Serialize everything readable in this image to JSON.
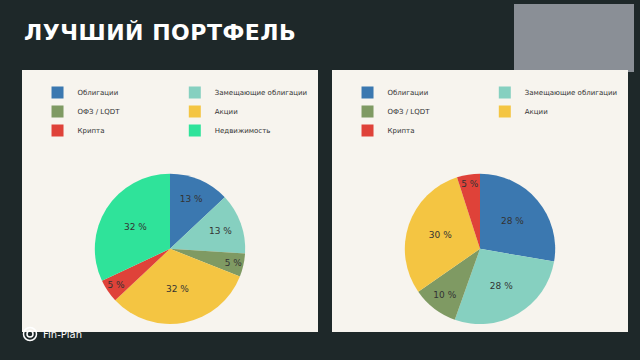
{
  "title": "ЛУЧШИЙ ПОРТФЕЛЬ",
  "brand": "Fin-Plan",
  "chart_data": [
    {
      "type": "pie",
      "categories": [
        "Облигации",
        "Замещающие облигации",
        "ОФЗ / LQDT",
        "Акции",
        "Крипта",
        "Недвижимость"
      ],
      "values": [
        13,
        13,
        5,
        32,
        5,
        32
      ],
      "value_labels": [
        "13 %",
        "13 %",
        "5 %",
        "32 %",
        "5 %",
        "32 %"
      ],
      "colors": [
        "#3b78b0",
        "#86d0c0",
        "#7f9a63",
        "#f4c542",
        "#df4239",
        "#2fe39a"
      ],
      "data_labels": true,
      "legend": "top"
    },
    {
      "type": "pie",
      "categories": [
        "Облигации",
        "Замещающие облигации",
        "ОФЗ / LQDT",
        "Акции",
        "Крипта"
      ],
      "values": [
        28,
        28,
        10,
        30,
        5
      ],
      "value_labels": [
        "28 %",
        "28 %",
        "10 %",
        "30 %",
        "5 %"
      ],
      "colors": [
        "#3b78b0",
        "#86d0c0",
        "#7f9a63",
        "#f4c542",
        "#df4239"
      ],
      "data_labels": true,
      "legend": "top"
    }
  ]
}
